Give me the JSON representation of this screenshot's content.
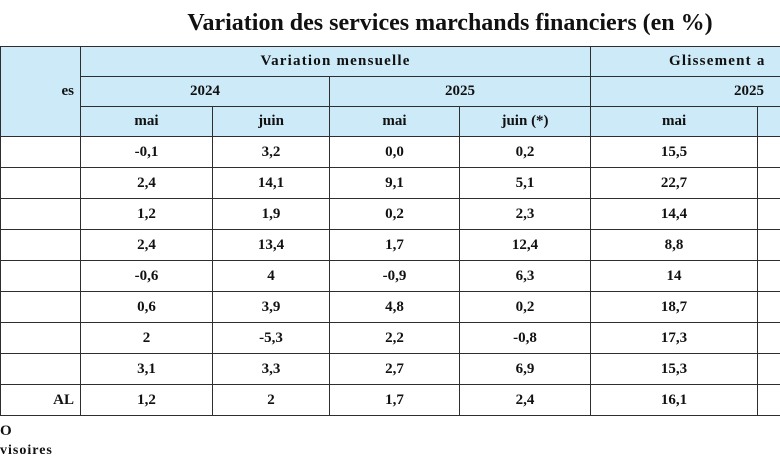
{
  "title": "Variation des services marchands financiers (en %)",
  "header": {
    "category_label": "es",
    "group_monthly": "Variation mensuelle",
    "group_yoy": "Glissement a",
    "years_monthly": [
      "2024",
      "2025"
    ],
    "year_yoy": "2025",
    "months": [
      "mai",
      "juin",
      "mai",
      "juin (*)",
      "mai"
    ]
  },
  "rows": [
    {
      "label": "",
      "values": [
        "-0,1",
        "3,2",
        "0,0",
        "0,2",
        "15,5"
      ]
    },
    {
      "label": "",
      "values": [
        "2,4",
        "14,1",
        "9,1",
        "5,1",
        "22,7"
      ]
    },
    {
      "label": "",
      "values": [
        "1,2",
        "1,9",
        "0,2",
        "2,3",
        "14,4"
      ]
    },
    {
      "label": "",
      "values": [
        "2,4",
        "13,4",
        "1,7",
        "12,4",
        "8,8"
      ]
    },
    {
      "label": "",
      "values": [
        "-0,6",
        "4",
        "-0,9",
        "6,3",
        "14"
      ]
    },
    {
      "label": "",
      "values": [
        "0,6",
        "3,9",
        "4,8",
        "0,2",
        "18,7"
      ]
    },
    {
      "label": "",
      "values": [
        "2",
        "-5,3",
        "2,2",
        "-0,8",
        "17,3"
      ]
    },
    {
      "label": "",
      "values": [
        "3,1",
        "3,3",
        "2,7",
        "6,9",
        "15,3"
      ]
    },
    {
      "label": "AL",
      "values": [
        "1,2",
        "2",
        "1,7",
        "2,4",
        "16,1"
      ]
    }
  ],
  "notes": [
    "O",
    "visoires"
  ]
}
